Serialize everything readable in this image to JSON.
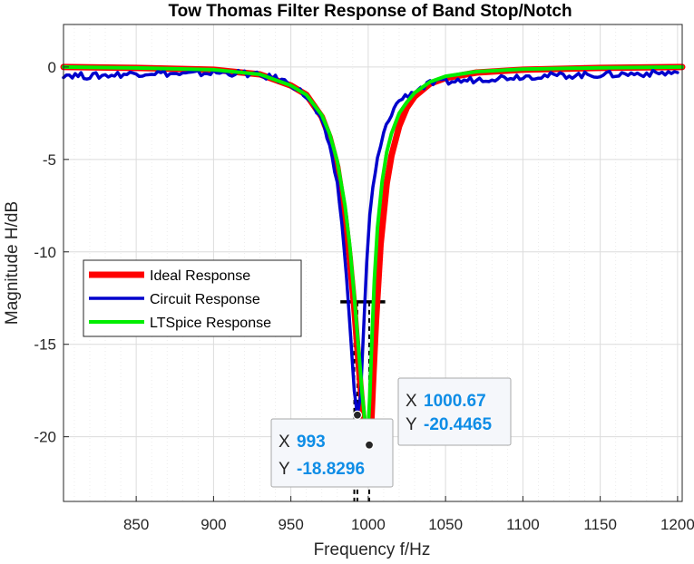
{
  "chart_data": {
    "type": "line",
    "title": "Tow Thomas Filter Response of Band Stop/Notch",
    "xlabel": "Frequency f/Hz",
    "ylabel": "Magnitude H/dB",
    "xlim": [
      803,
      1203
    ],
    "ylim": [
      -23.5,
      2.3
    ],
    "x_ticks": [
      850,
      900,
      950,
      1000,
      1050,
      1100,
      1150,
      1200
    ],
    "x_tick_labels": [
      "850",
      "900",
      "950",
      "1000",
      "1050",
      "1100",
      "1150",
      "1200"
    ],
    "y_ticks": [
      0,
      -5,
      -10,
      -15,
      -20
    ],
    "y_tick_labels": [
      "0",
      "-5",
      "-10",
      "-15",
      "-20"
    ],
    "grid": true,
    "minor_grid": true,
    "legend_placement": "left-middle",
    "series": [
      {
        "name": "Ideal Response",
        "color": "#ff0000",
        "x": [
          803,
          850,
          900,
          930,
          950,
          960,
          970,
          975,
          980,
          985,
          988,
          991,
          993,
          995,
          997,
          998,
          999,
          1000,
          1000.67,
          1001.5,
          1002,
          1003,
          1005,
          1008,
          1012,
          1015,
          1020,
          1025,
          1030,
          1040,
          1050,
          1070,
          1100,
          1150,
          1203
        ],
        "y": [
          0,
          -0.05,
          -0.15,
          -0.4,
          -1.0,
          -1.5,
          -2.7,
          -3.8,
          -5.4,
          -8.1,
          -10.3,
          -13.0,
          -15.2,
          -17.3,
          -19.2,
          -20.0,
          -20.4,
          -20.45,
          -20.4465,
          -20.0,
          -19.2,
          -17.3,
          -13.8,
          -9.6,
          -6.3,
          -4.8,
          -3.2,
          -2.2,
          -1.6,
          -0.9,
          -0.6,
          -0.3,
          -0.15,
          -0.05,
          0
        ]
      },
      {
        "name": "Circuit Response",
        "color": "#0000cc",
        "x": [
          803,
          820,
          840,
          860,
          880,
          900,
          920,
          940,
          950,
          960,
          965,
          970,
          975,
          980,
          983,
          986,
          989,
          991,
          993,
          995,
          997,
          999,
          1001,
          1003,
          1006,
          1010,
          1015,
          1020,
          1030,
          1040,
          1050,
          1060,
          1080,
          1100,
          1130,
          1160,
          1200
        ],
        "y": [
          -0.4,
          -0.5,
          -0.4,
          -0.3,
          -0.4,
          -0.3,
          -0.35,
          -0.6,
          -0.9,
          -1.6,
          -2.2,
          -3.0,
          -4.2,
          -6.3,
          -8.5,
          -11.4,
          -15.0,
          -17.5,
          -18.8296,
          -17.8,
          -14.2,
          -10.6,
          -8.0,
          -6.5,
          -5.0,
          -3.6,
          -2.5,
          -1.8,
          -1.3,
          -0.9,
          -0.8,
          -0.75,
          -0.6,
          -0.5,
          -0.45,
          -0.4,
          -0.3
        ]
      },
      {
        "name": "LTSpice Response",
        "color": "#00ee00",
        "x": [
          803,
          850,
          900,
          930,
          950,
          960,
          970,
          975,
          980,
          985,
          988,
          991,
          994,
          996,
          998,
          999,
          1000,
          1001,
          1002,
          1004,
          1006,
          1009,
          1012,
          1015,
          1020,
          1025,
          1030,
          1040,
          1050,
          1070,
          1100,
          1150,
          1203
        ],
        "y": [
          0,
          -0.05,
          -0.15,
          -0.4,
          -1.0,
          -1.5,
          -2.6,
          -3.6,
          -5.1,
          -7.5,
          -9.6,
          -12.4,
          -15.5,
          -17.6,
          -19.3,
          -19.8,
          -19.5,
          -17.8,
          -15.5,
          -11.5,
          -8.7,
          -6.2,
          -4.6,
          -3.6,
          -2.5,
          -1.9,
          -1.4,
          -0.8,
          -0.5,
          -0.25,
          -0.12,
          -0.04,
          0
        ]
      }
    ],
    "annotations": [
      {
        "x": 993,
        "y": -18.8296,
        "x_label": "X",
        "x_value": "993",
        "y_label": "Y",
        "y_value": "-18.8296"
      },
      {
        "x": 1000.67,
        "y": -20.4465,
        "x_label": "X",
        "x_value": "1000.67",
        "y_label": "Y",
        "y_value": "-20.4465"
      }
    ],
    "marker_lines": [
      {
        "type": "horizontal",
        "y": -12.7,
        "x_range": [
          982,
          1011
        ],
        "color": "#000000"
      },
      {
        "type": "vertical",
        "x": 991,
        "color": "#000000",
        "style": "dashed"
      },
      {
        "type": "vertical",
        "x": 993,
        "color": "#000000",
        "style": "dashed"
      },
      {
        "type": "vertical",
        "x": 1000.67,
        "color": "#000000",
        "style": "dashed"
      }
    ]
  },
  "colors": {
    "grid": "#dcdcdc",
    "minor_grid": "#e8e8e8",
    "axis": "#262626",
    "datatip_value": "#0e8de6",
    "datatip_bg": "#f5f7fb",
    "datatip_border": "#a8a8a8"
  }
}
